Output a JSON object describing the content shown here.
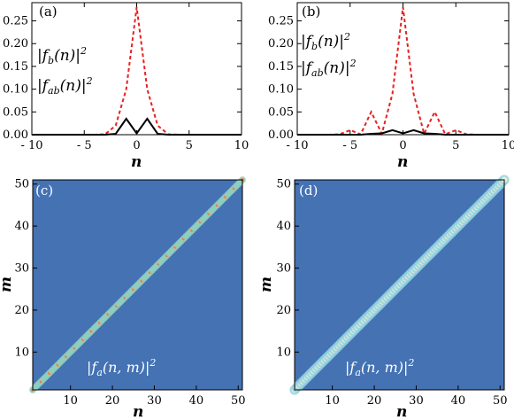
{
  "chart_data": [
    {
      "type": "line",
      "panel_label": "(a)",
      "xlabel": "n",
      "xlim": [
        -10,
        10
      ],
      "ylim": [
        0,
        0.29
      ],
      "x_ticks": [
        -10,
        -5,
        0,
        5,
        10
      ],
      "x_tick_labels": [
        "- 10",
        "- 5",
        "0",
        "5",
        "10"
      ],
      "y_ticks": [
        0.0,
        0.05,
        0.1,
        0.15,
        0.2,
        0.25
      ],
      "y_tick_labels": [
        "0.00",
        "0.05",
        "0.10",
        "0.15",
        "0.20",
        "0.25"
      ],
      "legend": [
        "|f_b(n)|^2",
        "|f_ab(n)|^2"
      ],
      "series": [
        {
          "color": "#e8201f",
          "dash": "dashed",
          "x": [
            -10,
            -9,
            -8,
            -7,
            -6,
            -5,
            -4,
            -3,
            -2,
            -1,
            0,
            1,
            2,
            3,
            4,
            5,
            6,
            7,
            8,
            9,
            10
          ],
          "y": [
            0,
            0,
            0,
            0,
            0,
            0,
            0,
            0.001,
            0.02,
            0.1,
            0.28,
            0.1,
            0.02,
            0.001,
            0,
            0,
            0,
            0,
            0,
            0,
            0
          ]
        },
        {
          "color": "#000000",
          "dash": "solid",
          "x": [
            -10,
            -9,
            -8,
            -7,
            -6,
            -5,
            -4,
            -3,
            -2,
            -1,
            0,
            1,
            2,
            3,
            4,
            5,
            6,
            7,
            8,
            9,
            10
          ],
          "y": [
            0,
            0,
            0,
            0,
            0,
            0,
            0,
            0,
            0.002,
            0.035,
            0.003,
            0.035,
            0.002,
            0,
            0,
            0,
            0,
            0,
            0,
            0,
            0
          ]
        }
      ]
    },
    {
      "type": "line",
      "panel_label": "(b)",
      "xlabel": "n",
      "xlim": [
        -10,
        10
      ],
      "ylim": [
        0,
        0.29
      ],
      "x_ticks": [
        -10,
        -5,
        0,
        5,
        10
      ],
      "x_tick_labels": [
        "- 10",
        "- 5",
        "0",
        "5",
        "10"
      ],
      "y_ticks": [
        0.0,
        0.05,
        0.1,
        0.15,
        0.2,
        0.25
      ],
      "y_tick_labels": [
        "0.00",
        "0.05",
        "0.10",
        "0.15",
        "0.20",
        "0.25"
      ],
      "legend": [
        "|f_b(n)|^2",
        "|f_ab(n)|^2"
      ],
      "series": [
        {
          "color": "#e8201f",
          "dash": "dashed",
          "x": [
            -10,
            -9,
            -8,
            -7,
            -6,
            -5,
            -4,
            -3,
            -2,
            -1,
            0,
            1,
            2,
            3,
            4,
            5,
            6,
            7,
            8,
            9,
            10
          ],
          "y": [
            0,
            0,
            0,
            0,
            0.001,
            0.01,
            0.001,
            0.05,
            0.002,
            0.09,
            0.28,
            0.09,
            0.002,
            0.05,
            0.001,
            0.01,
            0.001,
            0,
            0,
            0,
            0
          ]
        },
        {
          "color": "#000000",
          "dash": "solid",
          "x": [
            -10,
            -9,
            -8,
            -7,
            -6,
            -5,
            -4,
            -3,
            -2,
            -1,
            0,
            1,
            2,
            3,
            4,
            5,
            6,
            7,
            8,
            9,
            10
          ],
          "y": [
            0,
            0,
            0,
            0,
            0,
            0,
            0,
            0.002,
            0.003,
            0.01,
            0.003,
            0.01,
            0.003,
            0.002,
            0,
            0,
            0,
            0,
            0,
            0,
            0
          ]
        }
      ]
    },
    {
      "type": "heatmap",
      "panel_label": "(c)",
      "xlabel": "n",
      "ylabel": "m",
      "xlim": [
        1,
        51
      ],
      "ylim": [
        1,
        51
      ],
      "x_ticks": [
        10,
        20,
        30,
        40,
        50
      ],
      "y_ticks": [
        10,
        20,
        30,
        40,
        50
      ],
      "annotation": "|f_a(n,m)|^2",
      "background_color": "#4472b3",
      "diagonal": {
        "width_cells": 0.9,
        "peaks_at_odd": true,
        "colors": [
          "#4472b3",
          "#8fd0c0",
          "#f0a060",
          "#e06a40"
        ]
      }
    },
    {
      "type": "heatmap",
      "panel_label": "(d)",
      "xlabel": "n",
      "ylabel": "m",
      "xlim": [
        1,
        51
      ],
      "ylim": [
        1,
        51
      ],
      "x_ticks": [
        10,
        20,
        30,
        40,
        50
      ],
      "y_ticks": [
        10,
        20,
        30,
        40,
        50
      ],
      "annotation": "|f_a(n,m)|^2",
      "background_color": "#4472b3",
      "diagonal": {
        "width_cells": 1.4,
        "peaks_at_odd": false,
        "colors": [
          "#4472b3",
          "#8fd0e0",
          "#f2f2d8"
        ]
      }
    }
  ]
}
